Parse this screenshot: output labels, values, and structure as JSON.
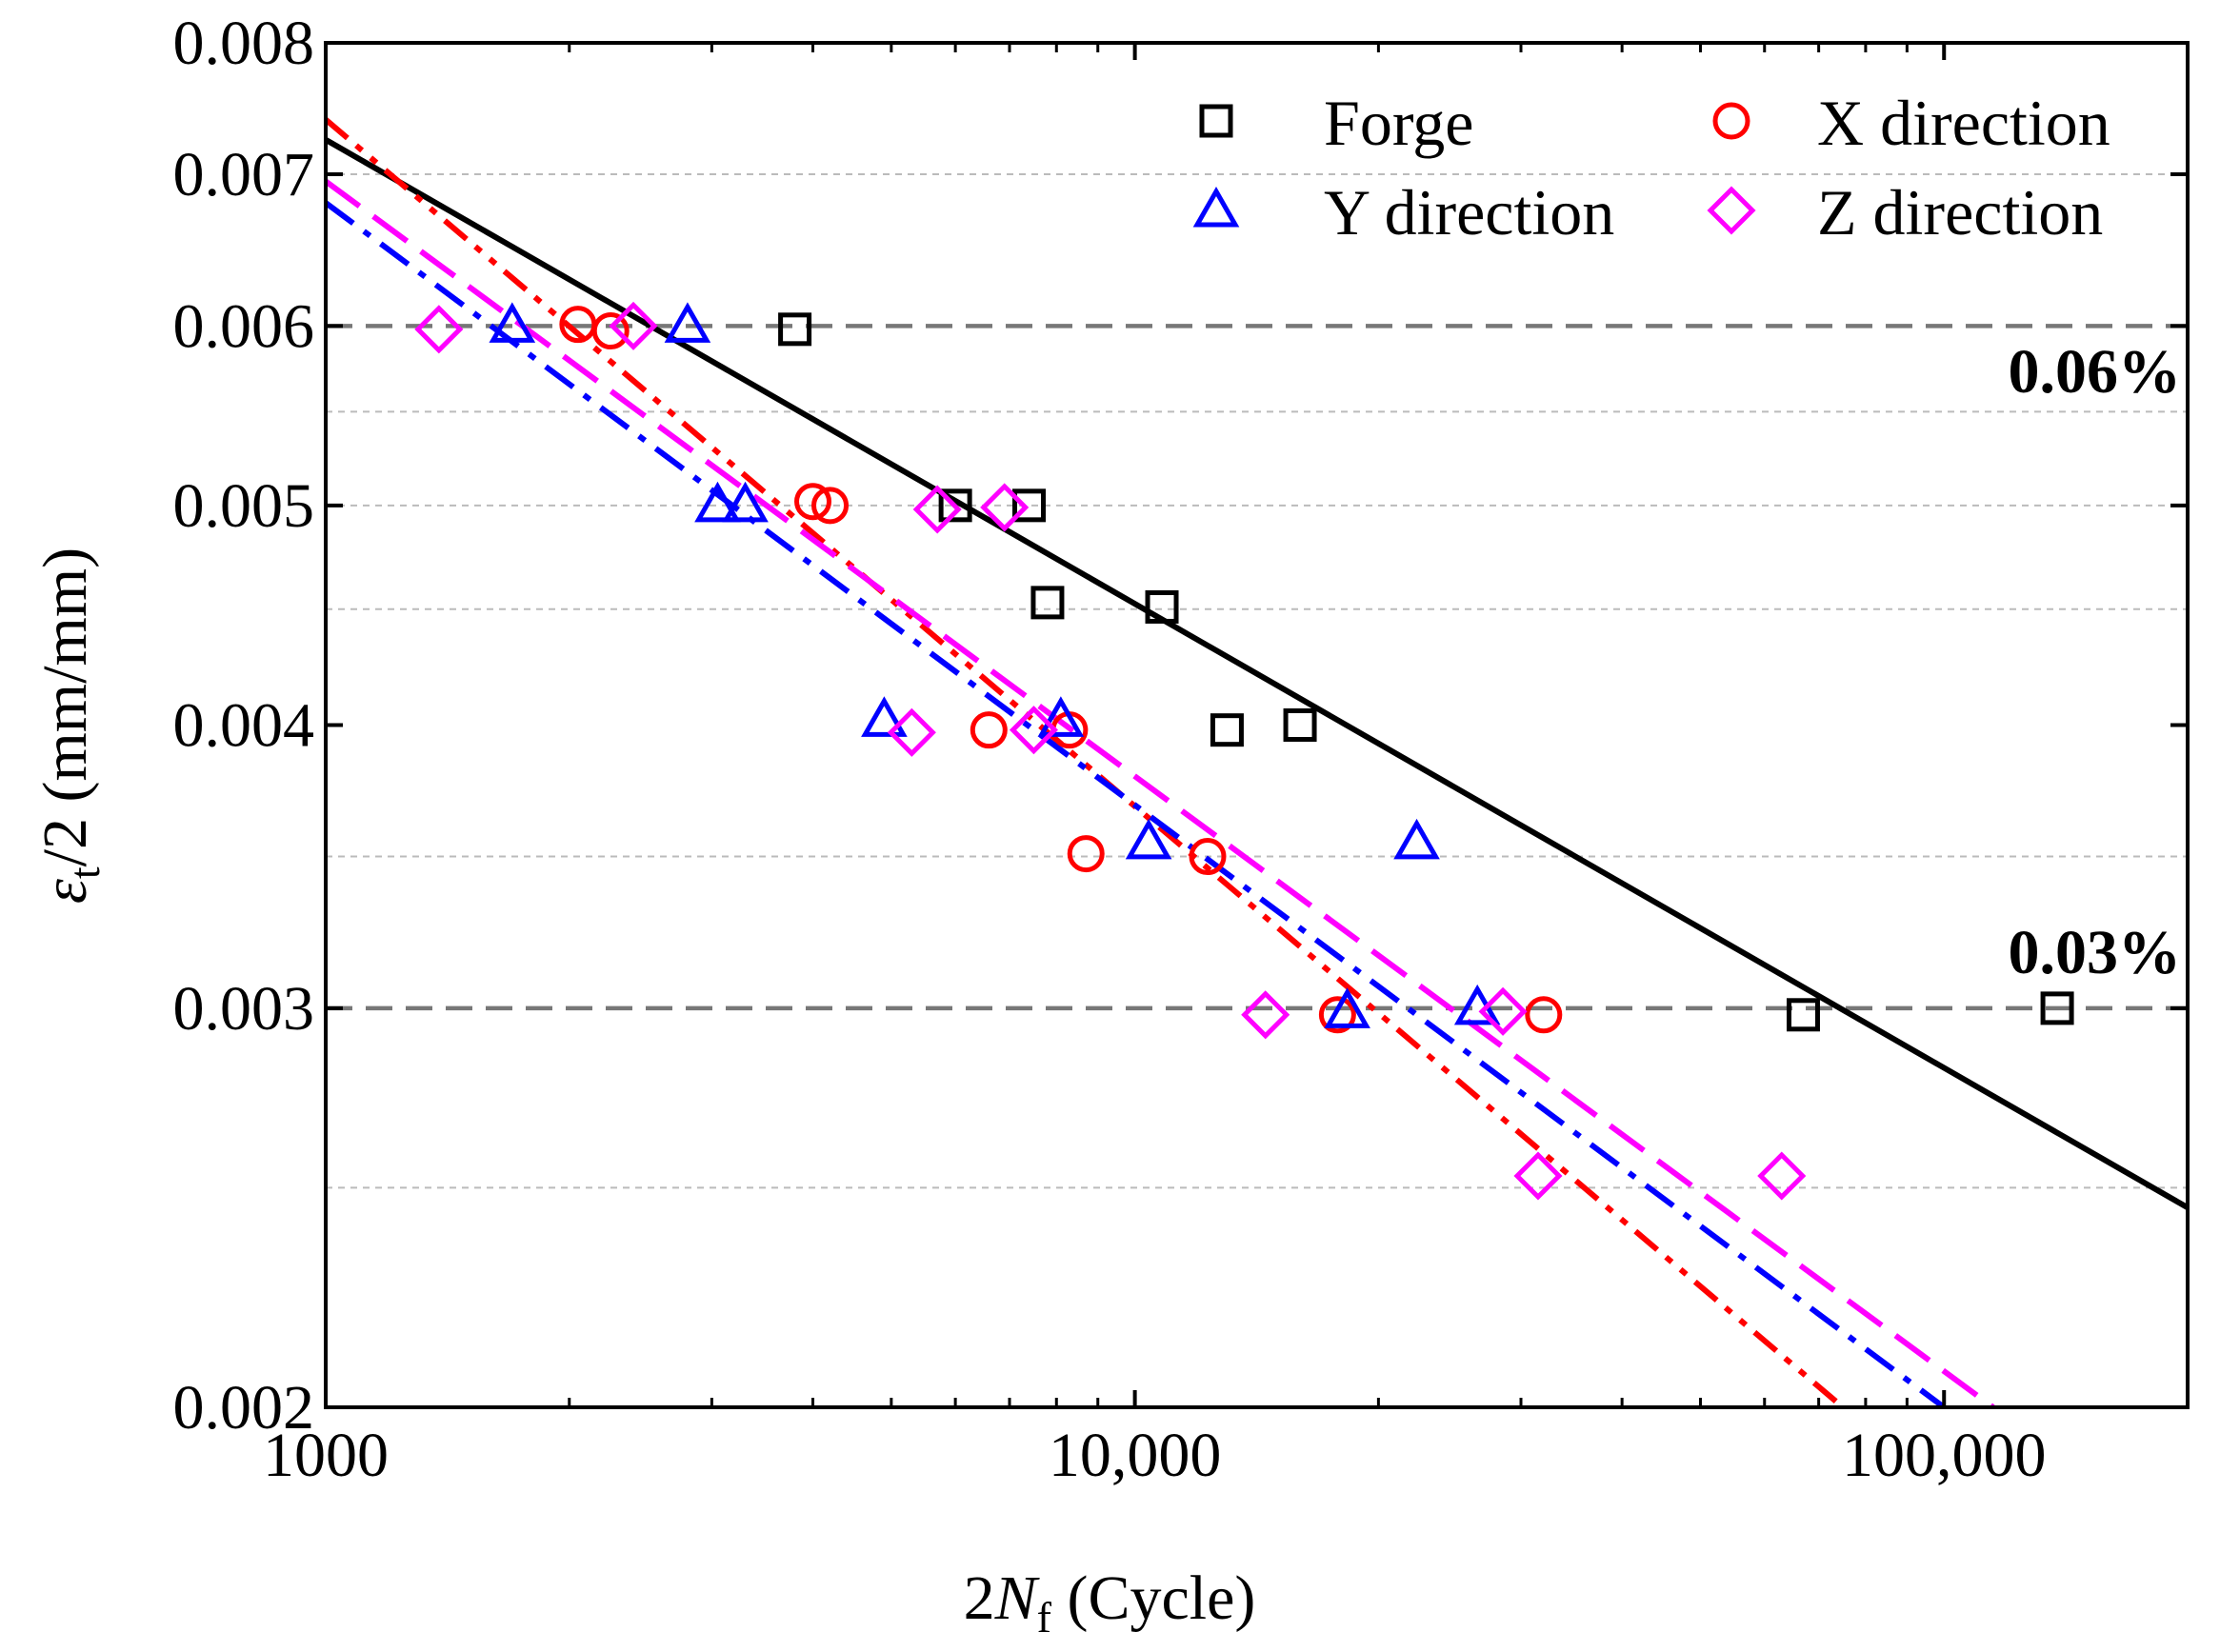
{
  "chart_data": {
    "type": "scatter",
    "title": "",
    "xlabel": {
      "symbol": "2",
      "var": "N",
      "sub": "f",
      "unit": " (Cycle)"
    },
    "ylabel": {
      "var": "ε",
      "sub": "t",
      "rest": "/2 (mm/mm)"
    },
    "xscale": "log",
    "yscale": "log",
    "xlim": [
      1000,
      200000
    ],
    "ylim": [
      0.002,
      0.008
    ],
    "x_ticks": [
      {
        "value": 1000,
        "label": "1000"
      },
      {
        "value": 10000,
        "label": "10,000"
      },
      {
        "value": 100000,
        "label": "100,000"
      }
    ],
    "y_ticks": [
      {
        "value": 0.002,
        "label": "0.002"
      },
      {
        "value": 0.003,
        "label": "0.003"
      },
      {
        "value": 0.004,
        "label": "0.004"
      },
      {
        "value": 0.005,
        "label": "0.005"
      },
      {
        "value": 0.006,
        "label": "0.006"
      },
      {
        "value": 0.007,
        "label": "0.007"
      },
      {
        "value": 0.008,
        "label": "0.008"
      }
    ],
    "gridlines_minor": [
      0.0025,
      0.0035,
      0.0045,
      0.005,
      0.0055,
      0.007
    ],
    "reference_lines": [
      {
        "y": 0.006,
        "label": "0.06%"
      },
      {
        "y": 0.003,
        "label": "0.03%"
      }
    ],
    "legend_position": "top-right",
    "series": [
      {
        "name": "Forge",
        "marker": "square",
        "color": "#000000",
        "fit_style": "solid",
        "fit": [
          [
            1000,
            0.00725
          ],
          [
            200000,
            0.00245
          ]
        ],
        "points": [
          [
            3800,
            0.00598
          ],
          [
            6000,
            0.005
          ],
          [
            7400,
            0.005
          ],
          [
            7800,
            0.00453
          ],
          [
            10800,
            0.00451
          ],
          [
            13000,
            0.00398
          ],
          [
            16000,
            0.004
          ],
          [
            67000,
            0.00298
          ],
          [
            138000,
            0.003
          ]
        ]
      },
      {
        "name": "X direction",
        "marker": "circle",
        "color": "#ff0000",
        "fit_style": "dash-dot-dot",
        "fit": [
          [
            1000,
            0.0074
          ],
          [
            75000,
            0.002
          ]
        ],
        "points": [
          [
            2050,
            0.00601
          ],
          [
            2250,
            0.00597
          ],
          [
            4000,
            0.00502
          ],
          [
            4200,
            0.005
          ],
          [
            6600,
            0.00398
          ],
          [
            8300,
            0.00398
          ],
          [
            8700,
            0.00351
          ],
          [
            12300,
            0.0035
          ],
          [
            17800,
            0.00298
          ],
          [
            32000,
            0.00298
          ]
        ]
      },
      {
        "name": "Y direction",
        "marker": "triangle",
        "color": "#0000ff",
        "fit_style": "dash-dot",
        "fit": [
          [
            1000,
            0.0068
          ],
          [
            100000,
            0.002
          ]
        ],
        "points": [
          [
            1700,
            0.006
          ],
          [
            2800,
            0.006
          ],
          [
            3050,
            0.005
          ],
          [
            3300,
            0.005
          ],
          [
            4900,
            0.00402
          ],
          [
            8100,
            0.00402
          ],
          [
            10400,
            0.00355
          ],
          [
            18300,
            0.00299
          ],
          [
            22300,
            0.00355
          ],
          [
            26500,
            0.003
          ]
        ]
      },
      {
        "name": "Z direction",
        "marker": "diamond",
        "color": "#ff00ff",
        "fit_style": "dash",
        "fit": [
          [
            1000,
            0.00695
          ],
          [
            115000,
            0.002
          ]
        ],
        "points": [
          [
            1380,
            0.00598
          ],
          [
            2400,
            0.006
          ],
          [
            5300,
            0.00397
          ],
          [
            5700,
            0.00498
          ],
          [
            6900,
            0.00499
          ],
          [
            7500,
            0.00398
          ],
          [
            14500,
            0.00298
          ],
          [
            28500,
            0.00299
          ],
          [
            31500,
            0.00253
          ],
          [
            63000,
            0.00253
          ]
        ]
      }
    ]
  }
}
